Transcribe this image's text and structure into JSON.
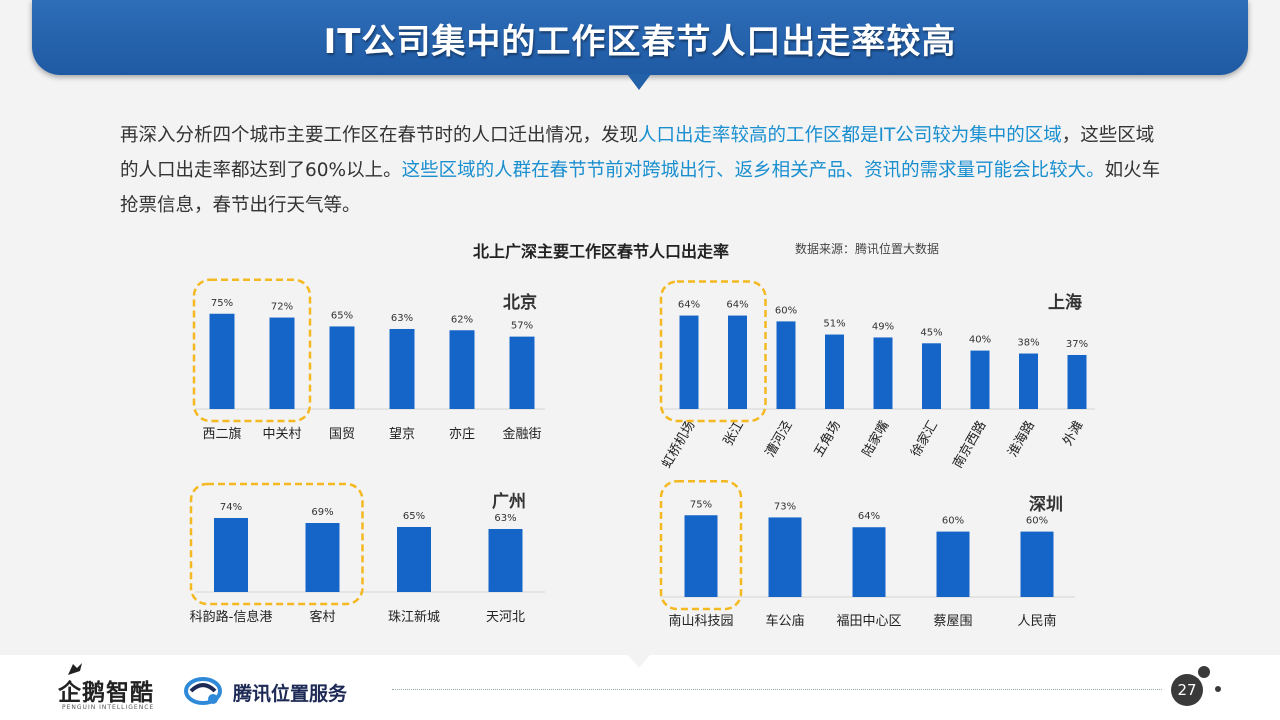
{
  "header": {
    "title": "IT公司集中的工作区春节人口出走率较高"
  },
  "description": {
    "p1": "再深入分析四个城市主要工作区在春节时的人口迁出情况，发现",
    "h1": "人口出走率较高的工作区都是IT公司较为集中的区域",
    "p2": "，这些区域的人口出走率都达到了60%以上。",
    "h2": "这些区域的人群在春节节前对跨城出行、返乡相关产品、资讯的需求量可能会比较大。",
    "p3": "如火车抢票信息，春节出行天气等。"
  },
  "chart_header": {
    "title": "北上广深主要工作区春节人口出走率",
    "source": "数据来源：腾讯位置大数据"
  },
  "chart_data": [
    {
      "type": "bar",
      "title": "北京",
      "categories": [
        "西二旗",
        "中关村",
        "国贸",
        "望京",
        "亦庄",
        "金融街"
      ],
      "values": [
        75,
        72,
        65,
        63,
        62,
        57
      ],
      "labels": [
        "75%",
        "72%",
        "65%",
        "63%",
        "62%",
        "57%"
      ],
      "highlighted": [
        "西二旗",
        "中关村"
      ],
      "color": "#1565c8"
    },
    {
      "type": "bar",
      "title": "上海",
      "categories": [
        "虹桥机场",
        "张江",
        "漕河泾",
        "五角场",
        "陆家嘴",
        "徐家汇",
        "南京西路",
        "淮海路",
        "外滩"
      ],
      "values": [
        64,
        64,
        60,
        51,
        49,
        45,
        40,
        38,
        37
      ],
      "labels": [
        "64%",
        "64%",
        "60%",
        "51%",
        "49%",
        "45%",
        "40%",
        "38%",
        "37%"
      ],
      "highlighted": [
        "虹桥机场",
        "张江"
      ],
      "color": "#1565c8"
    },
    {
      "type": "bar",
      "title": "广州",
      "categories": [
        "科韵路-信息港",
        "客村",
        "珠江新城",
        "天河北"
      ],
      "values": [
        74,
        69,
        65,
        63
      ],
      "labels": [
        "74%",
        "69%",
        "65%",
        "63%"
      ],
      "highlighted": [
        "科韵路-信息港",
        "客村"
      ],
      "color": "#1565c8"
    },
    {
      "type": "bar",
      "title": "深圳",
      "categories": [
        "南山科技园",
        "车公庙",
        "福田中心区",
        "蔡屋围",
        "人民南"
      ],
      "values": [
        75,
        73,
        64,
        60,
        60
      ],
      "labels": [
        "75%",
        "73%",
        "64%",
        "60%",
        "60%"
      ],
      "highlighted": [
        "南山科技园"
      ],
      "color": "#1565c8"
    }
  ],
  "footer": {
    "logo1": "企鹅智酷",
    "logo1_sub": "PENGUIN INTELLIGENCE",
    "logo2": "腾讯位置服务",
    "page_number": "27"
  },
  "colors": {
    "bar": "#1565c8",
    "highlight": "#f4b820",
    "banner": "#2563ae",
    "accent_text": "#1a8fd0"
  }
}
